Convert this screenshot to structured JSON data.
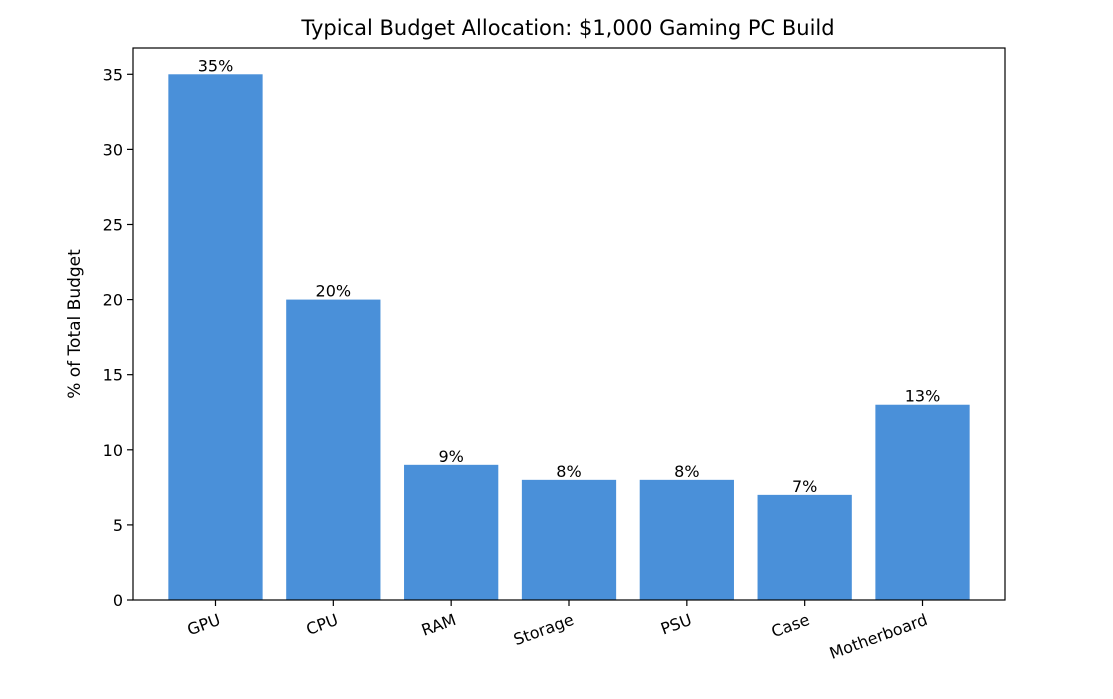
{
  "chart_data": {
    "type": "bar",
    "title": "Typical Budget Allocation: $1,000 Gaming PC Build",
    "ylabel": "% of Total Budget",
    "xlabel": "",
    "categories": [
      "GPU",
      "CPU",
      "RAM",
      "Storage",
      "PSU",
      "Case",
      "Motherboard"
    ],
    "values": [
      35,
      20,
      9,
      8,
      8,
      7,
      13
    ],
    "data_labels": [
      "35%",
      "20%",
      "9%",
      "8%",
      "8%",
      "7%",
      "13%"
    ],
    "yticks": [
      0,
      5,
      10,
      15,
      20,
      25,
      30,
      35
    ],
    "ytick_labels": [
      "0",
      "5",
      "10",
      "15",
      "20",
      "25",
      "30",
      "35"
    ],
    "ylim": [
      0,
      36.75
    ],
    "bar_color": "#4a90d9",
    "grid": false,
    "legend": "none",
    "xtick_rotation": -20
  }
}
